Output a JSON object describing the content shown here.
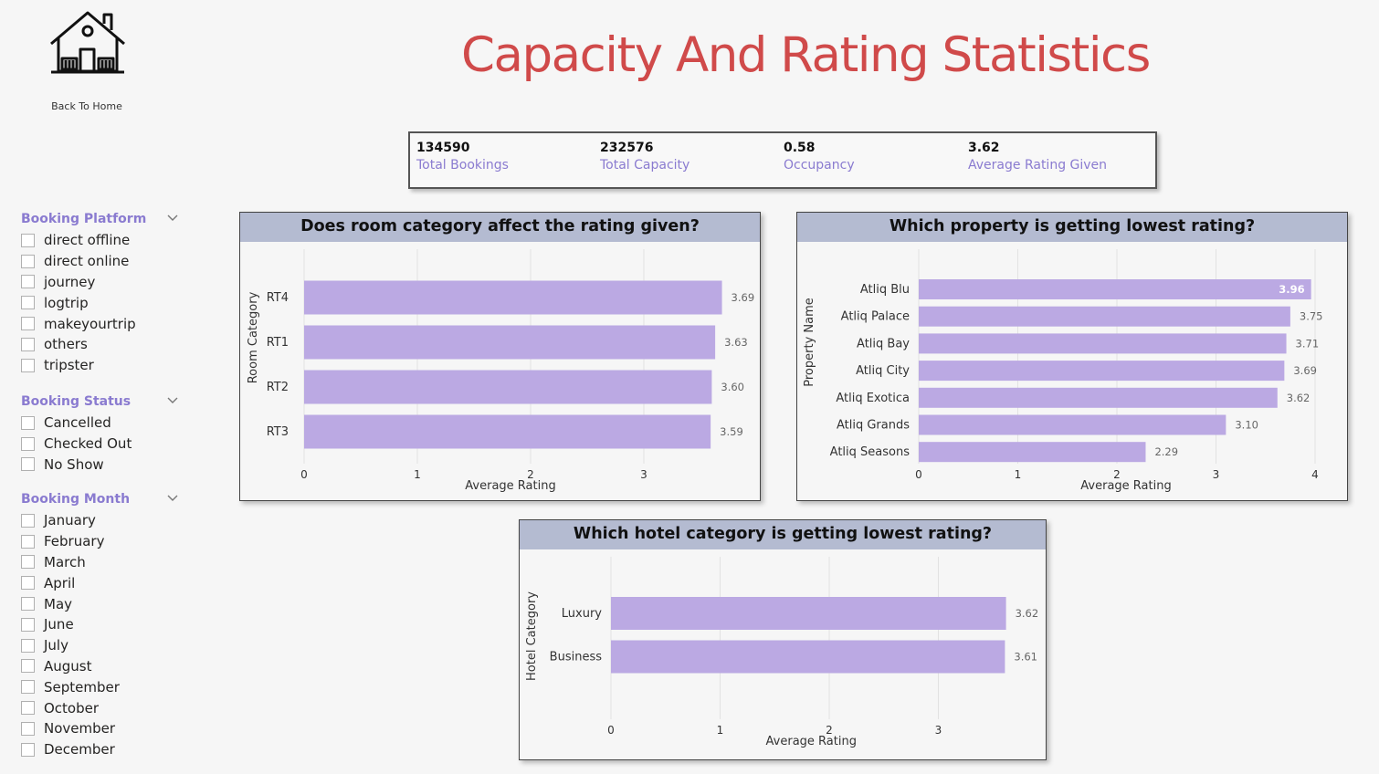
{
  "page": {
    "title": "Capacity And Rating Statistics",
    "home_label": "Back To Home"
  },
  "colors": {
    "title": "#d04a4a",
    "accent": "#8a7bd0",
    "bar": "#bba9e3",
    "card_header": "#b4bbd1"
  },
  "kpis": [
    {
      "value": "134590",
      "label": "Total Bookings"
    },
    {
      "value": "232576",
      "label": "Total Capacity"
    },
    {
      "value": "0.58",
      "label": "Occupancy"
    },
    {
      "value": "3.62",
      "label": "Average Rating Given"
    }
  ],
  "slicers": {
    "platform": {
      "title": "Booking Platform",
      "options": [
        "direct offline",
        "direct online",
        "journey",
        "logtrip",
        "makeyourtrip",
        "others",
        "tripster"
      ]
    },
    "status": {
      "title": "Booking Status",
      "options": [
        "Cancelled",
        "Checked Out",
        "No Show"
      ]
    },
    "month": {
      "title": "Booking Month",
      "options": [
        "January",
        "February",
        "March",
        "April",
        "May",
        "June",
        "July",
        "August",
        "September",
        "October",
        "November",
        "December"
      ]
    }
  },
  "chart_data": [
    {
      "type": "bar",
      "orientation": "horizontal",
      "title": "Does room category affect the rating given?",
      "xlabel": "Average Rating",
      "ylabel": "Room Category",
      "categories": [
        "RT4",
        "RT1",
        "RT2",
        "RT3"
      ],
      "values": [
        3.69,
        3.63,
        3.6,
        3.59
      ],
      "labels": [
        "3.69",
        "3.63",
        "3.60",
        "3.59"
      ],
      "xticks": [
        "0",
        "1",
        "2",
        "3"
      ],
      "xlim": [
        0,
        3.69
      ],
      "grid": true
    },
    {
      "type": "bar",
      "orientation": "horizontal",
      "title": "Which property is getting lowest rating?",
      "xlabel": "Average Rating",
      "ylabel": "Property Name",
      "categories": [
        "Atliq Blu",
        "Atliq Palace",
        "Atliq Bay",
        "Atliq City",
        "Atliq Exotica",
        "Atliq Grands",
        "Atliq Seasons"
      ],
      "values": [
        3.96,
        3.75,
        3.71,
        3.69,
        3.62,
        3.1,
        2.29
      ],
      "labels": [
        "3.96",
        "3.75",
        "3.71",
        "3.69",
        "3.62",
        "3.10",
        "2.29"
      ],
      "xticks": [
        "0",
        "1",
        "2",
        "3",
        "4"
      ],
      "xlim": [
        0,
        4
      ],
      "grid": true
    },
    {
      "type": "bar",
      "orientation": "horizontal",
      "title": "Which hotel category is getting lowest rating?",
      "xlabel": "Average Rating",
      "ylabel": "Hotel Category",
      "categories": [
        "Luxury",
        "Business"
      ],
      "values": [
        3.62,
        3.61
      ],
      "labels": [
        "3.62",
        "3.61"
      ],
      "xticks": [
        "0",
        "1",
        "2",
        "3"
      ],
      "xlim": [
        0,
        3.62
      ],
      "grid": true
    }
  ]
}
